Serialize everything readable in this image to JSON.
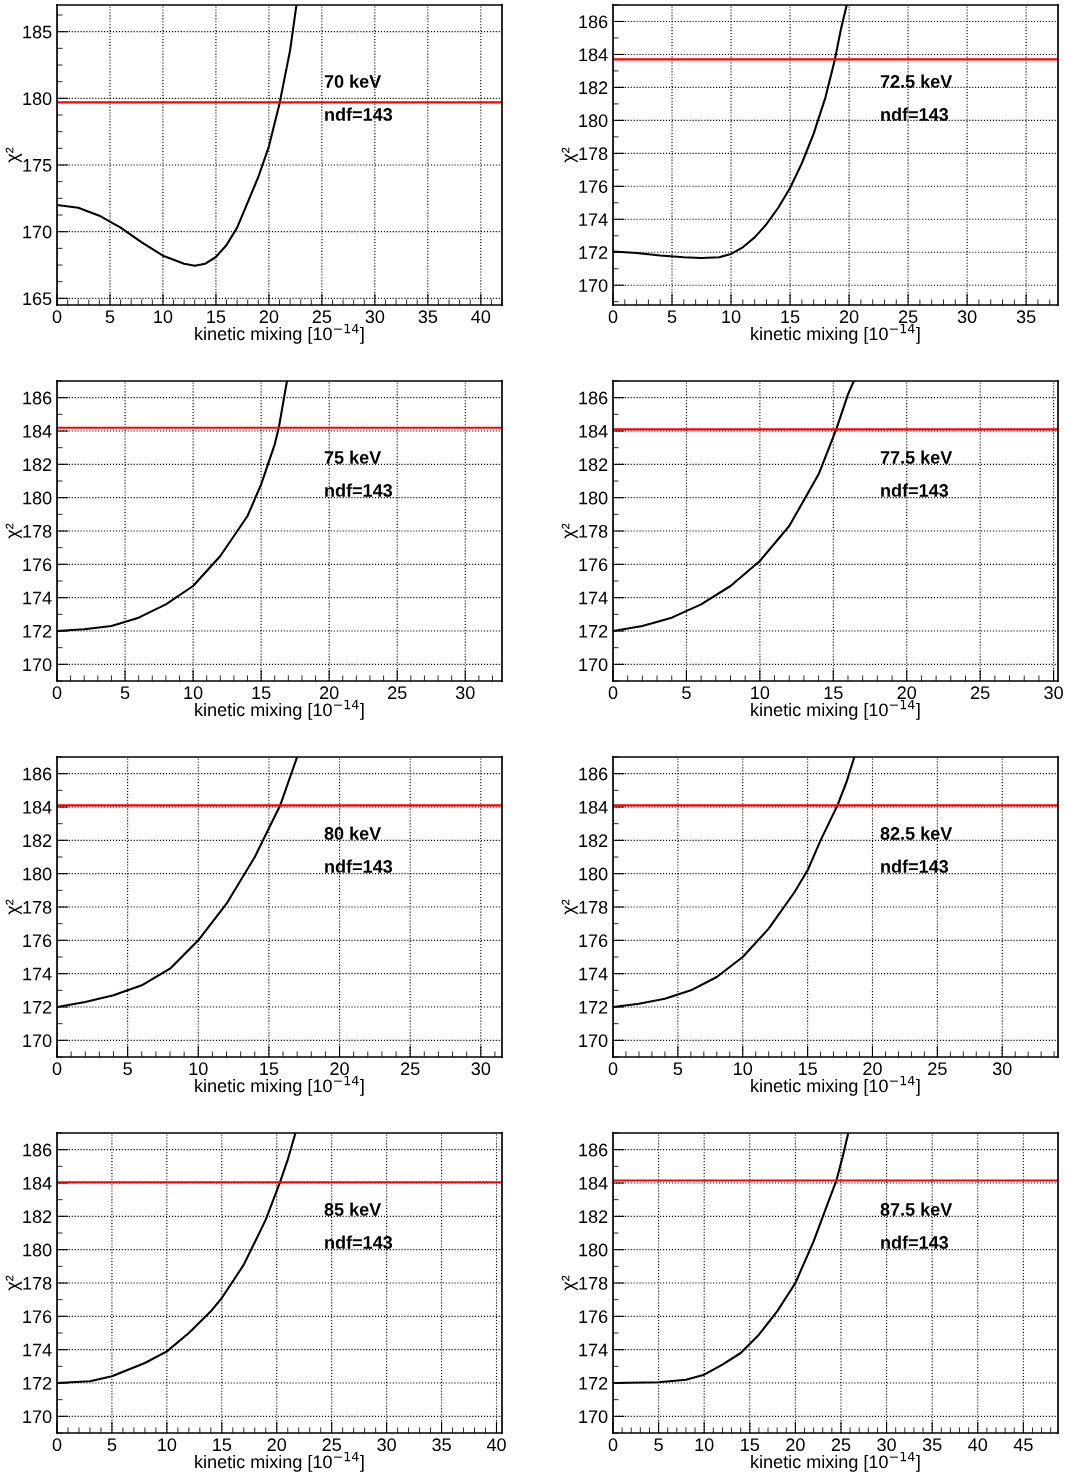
{
  "chart_data": [
    {
      "type": "line",
      "xlabel": "kinetic mixing [10$^{−14}$]",
      "ylabel": "χ²",
      "xlim": [
        0,
        42
      ],
      "ylim": [
        164.5,
        187
      ],
      "xticks": [
        0,
        5,
        10,
        15,
        20,
        25,
        30,
        35,
        40
      ],
      "yticks": [
        165,
        170,
        175,
        180,
        185
      ],
      "grid": true,
      "annotations": [
        "70 keV",
        "ndf=143"
      ],
      "ref_lines": [
        {
          "axis": "y",
          "value": 179.7,
          "color": "#ff0000"
        }
      ],
      "series": [
        {
          "color": "#000000",
          "x": [
            0,
            2,
            4,
            6,
            8,
            10,
            12,
            13,
            14,
            15,
            16,
            17,
            18,
            19,
            20,
            21,
            22,
            22.6
          ],
          "values": [
            172,
            171.8,
            171.2,
            170.3,
            169.2,
            168.2,
            167.6,
            167.45,
            167.6,
            168.1,
            169,
            170.3,
            172.2,
            174.1,
            176.4,
            179.6,
            183.6,
            187
          ]
        }
      ]
    },
    {
      "type": "line",
      "xlabel": "kinetic mixing [10$^{−14}$]",
      "ylabel": "χ²",
      "xlim": [
        0,
        37.7
      ],
      "ylim": [
        168.8,
        187
      ],
      "xticks": [
        0,
        5,
        10,
        15,
        20,
        25,
        30,
        35
      ],
      "yticks": [
        170,
        172,
        174,
        176,
        178,
        180,
        182,
        184,
        186
      ],
      "grid": true,
      "annotations": [
        "72.5 keV",
        "ndf=143"
      ],
      "ref_lines": [
        {
          "axis": "y",
          "value": 183.7,
          "color": "#ff0000"
        }
      ],
      "series": [
        {
          "color": "#000000",
          "x": [
            0,
            2,
            4,
            6,
            7.5,
            9,
            10,
            11,
            12,
            13,
            14,
            15,
            16,
            17,
            18,
            18.8,
            19.3,
            19.8
          ],
          "values": [
            172.05,
            171.95,
            171.8,
            171.7,
            171.65,
            171.7,
            171.9,
            172.3,
            172.9,
            173.7,
            174.7,
            175.9,
            177.4,
            179.2,
            181.4,
            183.7,
            185.5,
            187
          ]
        }
      ]
    },
    {
      "type": "line",
      "xlabel": "kinetic mixing [10$^{−14}$]",
      "ylabel": "χ²",
      "xlim": [
        0,
        32.7
      ],
      "ylim": [
        169,
        187
      ],
      "xticks": [
        0,
        5,
        10,
        15,
        20,
        25,
        30
      ],
      "yticks": [
        170,
        172,
        174,
        176,
        178,
        180,
        182,
        184,
        186
      ],
      "grid": true,
      "annotations": [
        "75 keV",
        "ndf=143"
      ],
      "ref_lines": [
        {
          "axis": "y",
          "value": 184.2,
          "color": "#ff0000"
        }
      ],
      "series": [
        {
          "color": "#000000",
          "x": [
            0,
            2,
            4,
            6,
            8,
            10,
            12,
            14,
            15,
            16,
            16.3,
            16.9
          ],
          "values": [
            172,
            172.1,
            172.3,
            172.8,
            173.6,
            174.7,
            176.5,
            178.9,
            180.8,
            183.2,
            184.2,
            187
          ]
        }
      ]
    },
    {
      "type": "line",
      "xlabel": "kinetic mixing [10$^{−14}$]",
      "ylabel": "χ²",
      "xlim": [
        0,
        30.3
      ],
      "ylim": [
        169,
        187
      ],
      "xticks": [
        0,
        5,
        10,
        15,
        20,
        25,
        30
      ],
      "yticks": [
        170,
        172,
        174,
        176,
        178,
        180,
        182,
        184,
        186
      ],
      "grid": true,
      "annotations": [
        "77.5 keV",
        "ndf=143"
      ],
      "ref_lines": [
        {
          "axis": "y",
          "value": 184.1,
          "color": "#ff0000"
        }
      ],
      "series": [
        {
          "color": "#000000",
          "x": [
            0,
            2,
            4,
            6,
            8,
            10,
            12,
            14,
            15.2,
            16,
            16.4
          ],
          "values": [
            172,
            172.3,
            172.8,
            173.6,
            174.7,
            176.2,
            178.3,
            181.4,
            184.1,
            186.2,
            187
          ]
        }
      ]
    },
    {
      "type": "line",
      "xlabel": "kinetic mixing [10$^{−14}$]",
      "ylabel": "χ²",
      "xlim": [
        0,
        31.5
      ],
      "ylim": [
        169,
        187
      ],
      "xticks": [
        0,
        5,
        10,
        15,
        20,
        25,
        30
      ],
      "yticks": [
        170,
        172,
        174,
        176,
        178,
        180,
        182,
        184,
        186
      ],
      "grid": true,
      "annotations": [
        "80 keV",
        "ndf=143"
      ],
      "ref_lines": [
        {
          "axis": "y",
          "value": 184.1,
          "color": "#ff0000"
        }
      ],
      "series": [
        {
          "color": "#000000",
          "x": [
            0,
            2,
            4,
            6,
            8,
            10,
            12,
            14,
            15.8,
            16.5,
            17
          ],
          "values": [
            172,
            172.3,
            172.7,
            173.3,
            174.3,
            176,
            178.2,
            181,
            184.1,
            185.8,
            187
          ]
        }
      ]
    },
    {
      "type": "line",
      "xlabel": "kinetic mixing [10$^{−14}$]",
      "ylabel": "χ²",
      "xlim": [
        0,
        34.3
      ],
      "ylim": [
        169,
        187
      ],
      "xticks": [
        0,
        5,
        10,
        15,
        20,
        25,
        30
      ],
      "yticks": [
        170,
        172,
        174,
        176,
        178,
        180,
        182,
        184,
        186
      ],
      "grid": true,
      "annotations": [
        "82.5 keV",
        "ndf=143"
      ],
      "ref_lines": [
        {
          "axis": "y",
          "value": 184.1,
          "color": "#ff0000"
        }
      ],
      "series": [
        {
          "color": "#000000",
          "x": [
            0,
            2,
            4,
            6,
            8,
            10,
            12,
            14,
            15,
            16,
            17.3,
            18,
            18.6
          ],
          "values": [
            172,
            172.2,
            172.5,
            173,
            173.8,
            175,
            176.7,
            178.9,
            180.2,
            182,
            184.1,
            185.5,
            187
          ]
        }
      ]
    },
    {
      "type": "line",
      "xlabel": "kinetic mixing [10$^{−14}$]",
      "ylabel": "χ²",
      "xlim": [
        0,
        40.5
      ],
      "ylim": [
        169,
        187
      ],
      "xticks": [
        0,
        5,
        10,
        15,
        20,
        25,
        30,
        35,
        40
      ],
      "yticks": [
        170,
        172,
        174,
        176,
        178,
        180,
        182,
        184,
        186
      ],
      "grid": true,
      "annotations": [
        "85 keV",
        "ndf=143"
      ],
      "ref_lines": [
        {
          "axis": "y",
          "value": 184.05,
          "color": "#ff0000"
        }
      ],
      "series": [
        {
          "color": "#000000",
          "x": [
            0,
            3,
            5,
            8,
            10,
            12,
            14,
            15,
            17,
            19,
            20.3,
            21,
            21.7
          ],
          "values": [
            172,
            172.1,
            172.4,
            173.2,
            173.9,
            175,
            176.3,
            177.1,
            179.1,
            181.8,
            184.05,
            185.4,
            187
          ]
        }
      ]
    },
    {
      "type": "line",
      "xlabel": "kinetic mixing [10$^{−14}$]",
      "ylabel": "χ²",
      "xlim": [
        0,
        48.8
      ],
      "ylim": [
        169,
        187
      ],
      "xticks": [
        0,
        5,
        10,
        15,
        20,
        25,
        30,
        35,
        40,
        45
      ],
      "yticks": [
        170,
        172,
        174,
        176,
        178,
        180,
        182,
        184,
        186
      ],
      "grid": true,
      "annotations": [
        "87.5 keV",
        "ndf=143"
      ],
      "ref_lines": [
        {
          "axis": "y",
          "value": 184.15,
          "color": "#ff0000"
        }
      ],
      "series": [
        {
          "color": "#000000",
          "x": [
            0,
            5,
            8,
            10,
            12,
            14,
            16,
            18,
            20,
            22,
            23.5,
            24.5,
            25.2,
            25.8
          ],
          "values": [
            172,
            172.05,
            172.2,
            172.5,
            173.1,
            173.8,
            174.9,
            176.3,
            178,
            180.5,
            182.7,
            184.15,
            185.6,
            187
          ]
        }
      ]
    }
  ]
}
